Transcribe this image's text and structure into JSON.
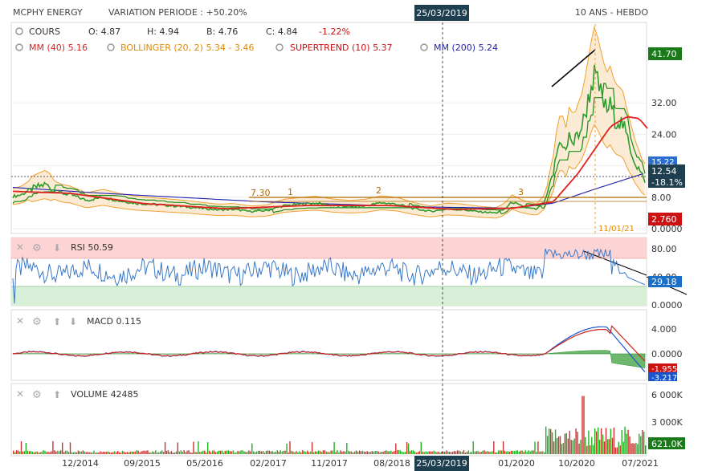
{
  "header": {
    "ticker": "MCPHY ENERGY",
    "variation": "VARIATION PERIODE : +50.20%",
    "cursor_date": "25/03/2019",
    "period": "10 ANS - HEBDO"
  },
  "legend": {
    "cours_label": "COURS",
    "open": "O: 4.87",
    "high": "H: 4.94",
    "low": "B: 4.76",
    "close": "C: 4.84",
    "change": "-1.22%",
    "mm40": "MM (40)",
    "mm40_val": "5.16",
    "bollinger": "BOLLINGER (20, 2)",
    "bollinger_val": "5.34 - 3.46",
    "supertrend": "SUPERTREND (10)",
    "supertrend_val": "5.37",
    "mm200": "MM (200)",
    "mm200_val": "5.24"
  },
  "annotations": {
    "level_730": "7.30",
    "wave1": "1",
    "wave2": "2",
    "wave3": "3",
    "date_marker": "11/01/21"
  },
  "price_badges": {
    "high": "41.70",
    "bb_upper": "15.22",
    "last": "12.54",
    "last_change": "-18.1%",
    "low": "2.760"
  },
  "rsi": {
    "label": "RSI",
    "value": "50.59",
    "last": "29.18",
    "ticks": [
      "80.00",
      "40.00",
      "0.0000"
    ]
  },
  "macd": {
    "label": "MACD",
    "value": "0.115",
    "last_signal": "-1.955",
    "last_macd": "-3.217",
    "ticks": [
      "4.000",
      "0.0000"
    ]
  },
  "volume": {
    "label": "VOLUME",
    "value": "42485",
    "last": "621.0K",
    "ticks": [
      "6 000K",
      "3 000K"
    ]
  },
  "colors": {
    "price": "#2d9b2d",
    "mm40": "#e02020",
    "bollinger": "#f0a030",
    "supertrend": "#1a8a1a",
    "mm200": "#1f1fb0",
    "rsi": "#3a78c8",
    "macd": "#1a55d0",
    "signal": "#d02020",
    "hist": "#3ca03c",
    "volume": "#22b022",
    "badge_green": "#1a7a1a",
    "badge_dark": "#1d3f4f",
    "badge_red": "#cc1111"
  },
  "chart_data": [
    {
      "type": "line",
      "name": "COURS",
      "y_ticks": [
        0,
        8,
        16,
        24,
        32
      ],
      "y_tick_labels": [
        "0.0000",
        "8.00",
        "16.00",
        "24.00",
        "32.00"
      ],
      "ylim": [
        0,
        44
      ],
      "x_tick_labels": [
        "12/2014",
        "09/2015",
        "05/2016",
        "02/2017",
        "11/2017",
        "08/2018",
        "01/2020",
        "10/2020",
        "07/2021"
      ],
      "series_close": [
        [
          2013.9,
          8.2
        ],
        [
          2014.0,
          8.6
        ],
        [
          2014.1,
          9.8
        ],
        [
          2014.2,
          10.6
        ],
        [
          2014.3,
          11.3
        ],
        [
          2014.4,
          9.9
        ],
        [
          2014.5,
          9.0
        ],
        [
          2014.6,
          8.7
        ],
        [
          2014.8,
          7.2
        ],
        [
          2014.9,
          7.6
        ],
        [
          2015.0,
          8.0
        ],
        [
          2015.2,
          7.1
        ],
        [
          2015.4,
          6.5
        ],
        [
          2015.6,
          6.2
        ],
        [
          2015.8,
          5.9
        ],
        [
          2016.0,
          5.6
        ],
        [
          2016.2,
          5.2
        ],
        [
          2016.4,
          4.8
        ],
        [
          2016.6,
          4.9
        ],
        [
          2016.8,
          4.4
        ],
        [
          2017.0,
          4.6
        ],
        [
          2017.2,
          5.8
        ],
        [
          2017.4,
          6.2
        ],
        [
          2017.6,
          6.5
        ],
        [
          2017.8,
          5.9
        ],
        [
          2018.0,
          5.6
        ],
        [
          2018.2,
          5.8
        ],
        [
          2018.4,
          6.6
        ],
        [
          2018.6,
          6.2
        ],
        [
          2018.8,
          5.1
        ],
        [
          2019.0,
          4.4
        ],
        [
          2019.2,
          5.0
        ],
        [
          2019.4,
          4.8
        ],
        [
          2019.6,
          4.3
        ],
        [
          2019.8,
          4.0
        ],
        [
          2019.9,
          4.9
        ],
        [
          2020.0,
          6.8
        ],
        [
          2020.1,
          5.8
        ],
        [
          2020.2,
          5.2
        ],
        [
          2020.3,
          4.9
        ],
        [
          2020.4,
          7.0
        ],
        [
          2020.5,
          14.0
        ],
        [
          2020.55,
          20.0
        ],
        [
          2020.6,
          23.0
        ],
        [
          2020.65,
          19.0
        ],
        [
          2020.7,
          24.0
        ],
        [
          2020.75,
          21.5
        ],
        [
          2020.8,
          24.0
        ],
        [
          2020.85,
          26.0
        ],
        [
          2020.9,
          30.0
        ],
        [
          2020.95,
          35.0
        ],
        [
          2021.0,
          39.0
        ],
        [
          2021.05,
          36.5
        ],
        [
          2021.1,
          33.0
        ],
        [
          2021.15,
          30.0
        ],
        [
          2021.2,
          31.5
        ],
        [
          2021.25,
          28.0
        ],
        [
          2021.3,
          27.5
        ],
        [
          2021.35,
          26.5
        ],
        [
          2021.4,
          23.0
        ],
        [
          2021.45,
          20.0
        ],
        [
          2021.5,
          17.0
        ],
        [
          2021.55,
          15.0
        ],
        [
          2021.6,
          12.54
        ]
      ],
      "mm200": [
        [
          2013.9,
          10.5
        ],
        [
          2015.0,
          9.0
        ],
        [
          2017.0,
          6.8
        ],
        [
          2019.0,
          5.5
        ],
        [
          2020.0,
          5.2
        ],
        [
          2020.5,
          6.5
        ],
        [
          2021.0,
          10.0
        ],
        [
          2021.6,
          14.0
        ]
      ],
      "mm40": [
        [
          2013.9,
          9.5
        ],
        [
          2014.6,
          9.0
        ],
        [
          2015.5,
          6.4
        ],
        [
          2016.5,
          5.1
        ],
        [
          2017.5,
          5.9
        ],
        [
          2018.5,
          5.9
        ],
        [
          2019.3,
          4.9
        ],
        [
          2020.0,
          5.2
        ],
        [
          2020.5,
          6.8
        ],
        [
          2020.8,
          14.0
        ],
        [
          2021.0,
          20.0
        ],
        [
          2021.2,
          26.0
        ],
        [
          2021.4,
          28.5
        ],
        [
          2021.55,
          28.0
        ],
        [
          2021.65,
          25.5
        ]
      ],
      "levels": [
        7.3
      ]
    },
    {
      "type": "line",
      "name": "RSI",
      "ylim": [
        0,
        100
      ],
      "value": 50.59,
      "last": 29.18
    },
    {
      "type": "line",
      "name": "MACD",
      "ylim": [
        -5,
        6
      ],
      "value": 0.115,
      "last_signal": -1.955,
      "last_macd": -3.217
    },
    {
      "type": "bar",
      "name": "VOLUME",
      "ylim": [
        0,
        7000
      ],
      "value": 42485,
      "last": 621.0
    }
  ]
}
